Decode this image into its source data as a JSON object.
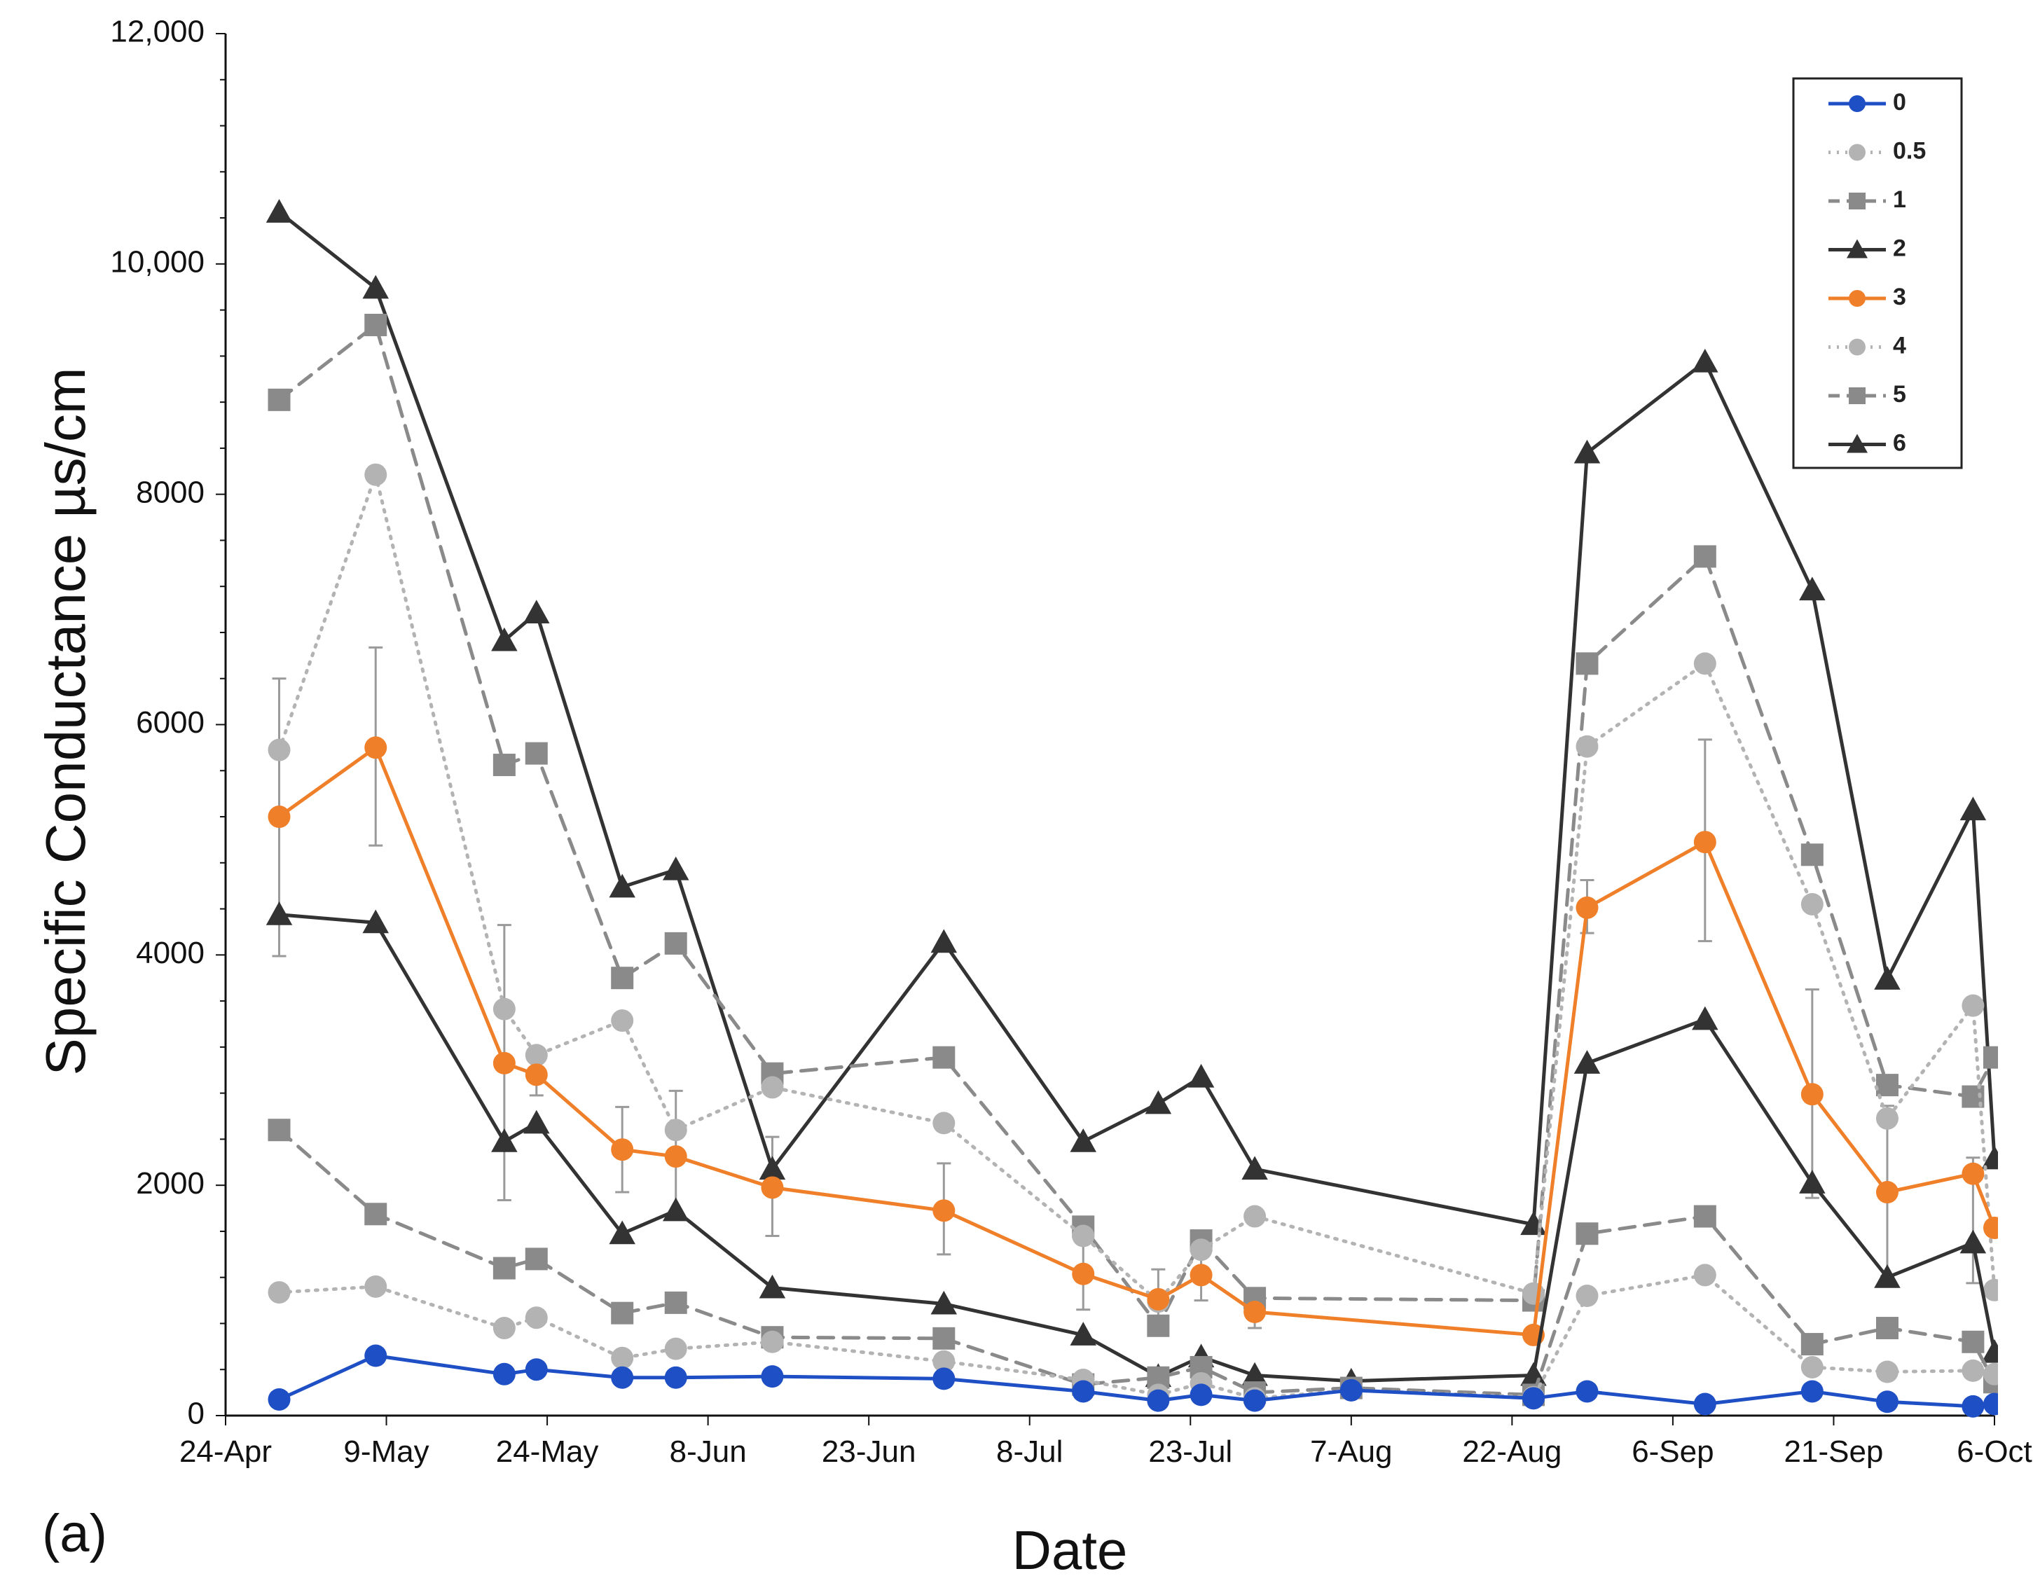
{
  "chart_data": {
    "type": "line",
    "panel_label": "(a)",
    "title": "",
    "xlabel": "Date",
    "ylabel": "Specific Conductance µs/cm",
    "ylim": [
      0,
      12000
    ],
    "y_ticks": [
      0,
      2000,
      4000,
      6000,
      8000,
      10000,
      12000
    ],
    "y_tick_labels": [
      "0",
      "2000",
      "4000",
      "6000",
      "8000",
      "10,000",
      "12,000"
    ],
    "xlim_day": [
      0,
      165
    ],
    "x_ticks_day": [
      0,
      15,
      30,
      45,
      60,
      75,
      90,
      105,
      120,
      135,
      150,
      165
    ],
    "x_tick_labels": [
      "24-Apr",
      "9-May",
      "24-May",
      "8-Jun",
      "23-Jun",
      "8-Jul",
      "23-Jul",
      "7-Aug",
      "22-Aug",
      "6-Sep",
      "21-Sep",
      "6-Oct"
    ],
    "x_note": "x values are days after 24-Apr",
    "grid": false,
    "legend_position": "top-right",
    "series": [
      {
        "name": "0",
        "color": "#1f4fc4",
        "dash": "solid",
        "marker": "circle",
        "x": [
          5,
          14,
          26,
          29,
          37,
          42,
          51,
          67,
          80,
          87,
          91,
          96,
          105,
          122,
          127,
          138,
          148,
          155,
          163,
          165
        ],
        "y": [
          140,
          520,
          360,
          400,
          330,
          330,
          340,
          320,
          210,
          130,
          180,
          130,
          220,
          150,
          210,
          100,
          210,
          120,
          80,
          100
        ]
      },
      {
        "name": "0.5",
        "color": "#b3b3b3",
        "dash": "dotted",
        "marker": "circle",
        "x": [
          5,
          14,
          26,
          29,
          37,
          42,
          51,
          67,
          80,
          87,
          91,
          96,
          105,
          122,
          127,
          138,
          148,
          155,
          163,
          165
        ],
        "y": [
          1070,
          1120,
          760,
          850,
          500,
          580,
          640,
          470,
          310,
          180,
          280,
          150,
          220,
          160,
          1040,
          1220,
          420,
          380,
          390,
          360
        ]
      },
      {
        "name": "1",
        "color": "#8a8a8a",
        "dash": "dashed",
        "marker": "square",
        "x": [
          5,
          14,
          26,
          29,
          37,
          42,
          51,
          67,
          80,
          87,
          91,
          96,
          105,
          122,
          127,
          138,
          148,
          155,
          163,
          165
        ],
        "y": [
          2480,
          1750,
          1280,
          1360,
          890,
          980,
          680,
          670,
          270,
          330,
          420,
          200,
          240,
          180,
          1580,
          1730,
          620,
          760,
          640,
          290
        ]
      },
      {
        "name": "2",
        "color": "#333333",
        "dash": "solid",
        "marker": "triangle",
        "x": [
          5,
          14,
          26,
          29,
          37,
          42,
          51,
          67,
          80,
          87,
          91,
          96,
          105,
          122,
          127,
          138,
          148,
          155,
          163,
          165
        ],
        "y": [
          4350,
          4280,
          2380,
          2540,
          1580,
          1780,
          1110,
          970,
          700,
          340,
          510,
          350,
          300,
          350,
          3060,
          3440,
          2020,
          1200,
          1500,
          550
        ]
      },
      {
        "name": "3",
        "color": "#f07f2a",
        "dash": "solid",
        "marker": "circle",
        "x": [
          5,
          14,
          26,
          29,
          37,
          42,
          51,
          67,
          80,
          87,
          91,
          96,
          122,
          127,
          138,
          148,
          155,
          163,
          165
        ],
        "y": [
          5200,
          5800,
          3060,
          2960,
          2310,
          2250,
          1980,
          1780,
          1230,
          1010,
          1220,
          900,
          700,
          4410,
          4980,
          2790,
          1940,
          2100,
          1630
        ]
      },
      {
        "name": "4",
        "color": "#b3b3b3",
        "dash": "dotted",
        "marker": "circle",
        "x": [
          5,
          14,
          26,
          29,
          37,
          42,
          51,
          67,
          80,
          87,
          91,
          96,
          122,
          127,
          138,
          148,
          155,
          163,
          165
        ],
        "y": [
          5780,
          8170,
          3530,
          3130,
          3430,
          2480,
          2850,
          2540,
          1560,
          990,
          1440,
          1730,
          1060,
          5810,
          6530,
          4440,
          2580,
          3560,
          1090
        ]
      },
      {
        "name": "5",
        "color": "#8a8a8a",
        "dash": "dashed",
        "marker": "square",
        "x": [
          5,
          14,
          26,
          29,
          37,
          42,
          51,
          67,
          80,
          87,
          91,
          96,
          122,
          127,
          138,
          148,
          155,
          163,
          165
        ],
        "y": [
          8820,
          9470,
          5650,
          5750,
          3800,
          4100,
          2970,
          3110,
          1640,
          780,
          1520,
          1020,
          1000,
          6530,
          7460,
          4870,
          2870,
          2770,
          3110
        ]
      },
      {
        "name": "6",
        "color": "#333333",
        "dash": "solid",
        "marker": "triangle",
        "x": [
          5,
          14,
          26,
          29,
          37,
          42,
          51,
          67,
          80,
          87,
          91,
          96,
          122,
          127,
          138,
          148,
          155,
          163,
          165
        ],
        "y": [
          10450,
          9790,
          6730,
          6970,
          4590,
          4740,
          2140,
          4110,
          2380,
          2710,
          2940,
          2140,
          1660,
          8360,
          9150,
          7170,
          3790,
          5260,
          2230
        ]
      }
    ],
    "error_bars": [
      {
        "x": 5,
        "low": 3990,
        "high": 6400
      },
      {
        "x": 14,
        "low": 4950,
        "high": 6670
      },
      {
        "x": 26,
        "low": 1870,
        "high": 4260
      },
      {
        "x": 29,
        "low": 2780,
        "high": 3140
      },
      {
        "x": 37,
        "low": 1940,
        "high": 2680
      },
      {
        "x": 42,
        "low": 1700,
        "high": 2820
      },
      {
        "x": 51,
        "low": 1560,
        "high": 2420
      },
      {
        "x": 67,
        "low": 1400,
        "high": 2190
      },
      {
        "x": 80,
        "low": 920,
        "high": 1540
      },
      {
        "x": 87,
        "low": 760,
        "high": 1270
      },
      {
        "x": 91,
        "low": 1000,
        "high": 1450
      },
      {
        "x": 96,
        "low": 760,
        "high": 1040
      },
      {
        "x": 127,
        "low": 4190,
        "high": 4650
      },
      {
        "x": 138,
        "low": 4120,
        "high": 5870
      },
      {
        "x": 148,
        "low": 1890,
        "high": 3700
      },
      {
        "x": 155,
        "low": 1210,
        "high": 2690
      },
      {
        "x": 163,
        "low": 1150,
        "high": 2240
      }
    ]
  }
}
